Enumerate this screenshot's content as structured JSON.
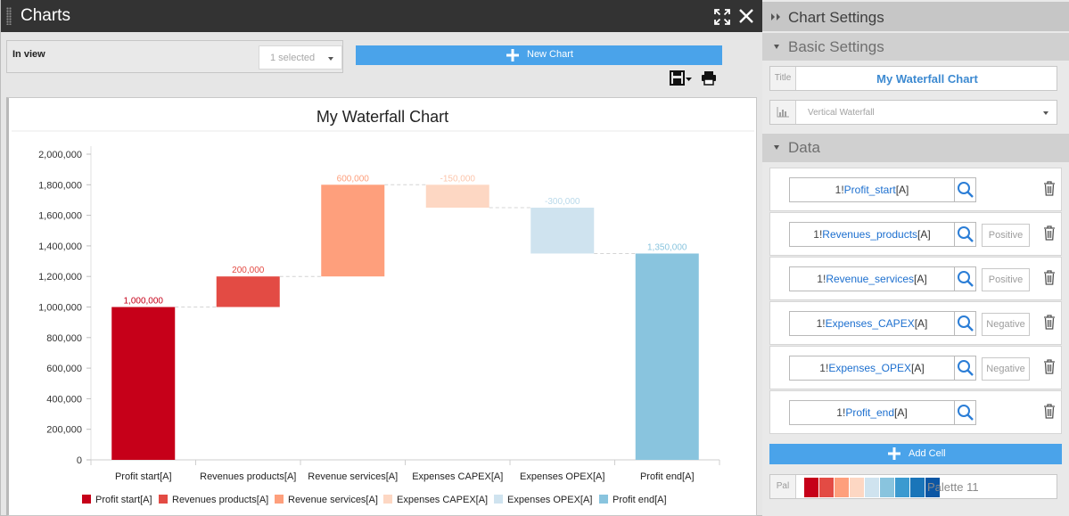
{
  "panel": {
    "title": "Charts"
  },
  "in_view": {
    "label": "In view",
    "selected_text": "1 selected"
  },
  "new_chart": {
    "label": "New Chart"
  },
  "chart_data": {
    "type": "waterfall",
    "orientation": "vertical",
    "title": "My Waterfall Chart",
    "categories": [
      "Profit start[A]",
      "Revenues products[A]",
      "Revenue services[A]",
      "Expenses CAPEX[A]",
      "Expenses OPEX[A]",
      "Profit end[A]"
    ],
    "values": [
      1000000,
      200000,
      600000,
      -150000,
      -300000,
      1350000
    ],
    "measures": [
      "total",
      "relative",
      "relative",
      "relative",
      "relative",
      "total"
    ],
    "data_labels": [
      "1,000,000",
      "200,000",
      "600,000",
      "-150,000",
      "-300,000",
      "1,350,000"
    ],
    "colors": [
      "#c60019",
      "#e34b44",
      "#fe9f7c",
      "#fdd7c3",
      "#cfe3ef",
      "#89c4de"
    ],
    "label_colors": [
      "#c60019",
      "#e34b44",
      "#fe9f7c",
      "#fcc5ab",
      "#b9d9ea",
      "#89c4de"
    ],
    "ylim": [
      0,
      2000000
    ],
    "yticks": [
      0,
      200000,
      400000,
      600000,
      800000,
      1000000,
      1200000,
      1400000,
      1600000,
      1800000,
      2000000
    ],
    "ytick_labels": [
      "0",
      "200,000",
      "400,000",
      "600,000",
      "800,000",
      "1,000,000",
      "1,200,000",
      "1,400,000",
      "1,600,000",
      "1,800,000",
      "2,000,000"
    ],
    "grid": false,
    "connectors": true,
    "legend": "bottom"
  },
  "settings": {
    "header": "Chart Settings",
    "basic_header": "Basic Settings",
    "title_tag": "Title",
    "title_value": "My Waterfall Chart",
    "chart_type": "Vertical Waterfall",
    "data_header": "Data"
  },
  "data_cells": [
    {
      "prefix": "1!",
      "name": "Profit_start",
      "suffix": "[A]",
      "sign": ""
    },
    {
      "prefix": "1!",
      "name": "Revenues_products",
      "suffix": "[A]",
      "sign": "Positive"
    },
    {
      "prefix": "1!",
      "name": "Revenue_services",
      "suffix": "[A]",
      "sign": "Positive"
    },
    {
      "prefix": "1!",
      "name": "Expenses_CAPEX",
      "suffix": "[A]",
      "sign": "Negative"
    },
    {
      "prefix": "1!",
      "name": "Expenses_OPEX",
      "suffix": "[A]",
      "sign": "Negative"
    },
    {
      "prefix": "1!",
      "name": "Profit_end",
      "suffix": "[A]",
      "sign": ""
    }
  ],
  "add_cell": {
    "label": "Add Cell"
  },
  "palette": {
    "tag": "Pal",
    "name": "Palette 11",
    "colors": [
      "#c60019",
      "#e34b44",
      "#fe9f7c",
      "#fdd7c3",
      "#cfe3ef",
      "#89c4de",
      "#3b9ad0",
      "#1a75b9",
      "#0b56a4"
    ]
  }
}
